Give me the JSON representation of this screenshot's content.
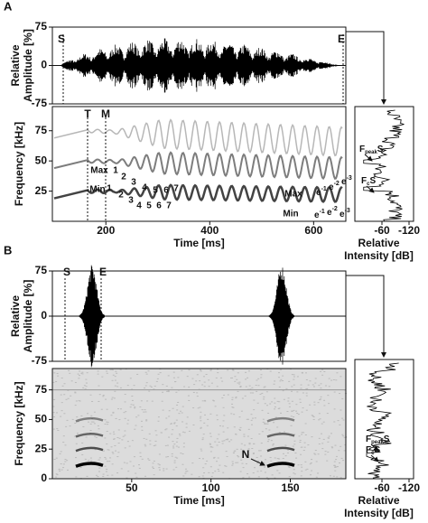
{
  "chart_data": [
    {
      "type": "oscillogram",
      "panel": "A",
      "ylabel": [
        "Relative",
        "Amplitude [%]"
      ],
      "ylim": [
        -75,
        75
      ],
      "yticks": [
        -75,
        0,
        75
      ],
      "annotations": [
        "S",
        "E"
      ]
    },
    {
      "type": "spectrogram",
      "ylabel": "Frequency [kHz]",
      "xlabel": "Time [ms]",
      "xlim": [
        97,
        662
      ],
      "xticks": [
        200,
        400,
        600
      ],
      "ylim": [
        0,
        95
      ],
      "yticks": [
        25,
        50,
        75
      ],
      "annotations": [
        "T",
        "M"
      ],
      "max_labels": [
        "Max",
        "1",
        "2",
        "3",
        "4",
        "5",
        "6",
        "7"
      ],
      "min_labels": [
        "Min",
        "1",
        "2",
        "3",
        "4",
        "5",
        "6",
        "7"
      ],
      "max_e": {
        "label": "Max",
        "base": "e",
        "sups": [
          "-1",
          "-2",
          "-3"
        ]
      },
      "min_e": {
        "label": "Min",
        "base": "e",
        "sups": [
          "-1",
          "-2",
          "-3"
        ]
      }
    },
    {
      "type": "spectrum",
      "xlabel": [
        "Relative",
        "Intensity [dB]"
      ],
      "xlim": [
        0,
        -130
      ],
      "xticks": [
        -60,
        -120
      ],
      "ylim": [
        0,
        95
      ],
      "peak_label": {
        "base": "F",
        "sub": "peak",
        "suffix": "S"
      },
      "c_label": {
        "base": "F",
        "sub": "c",
        "suffix": "S"
      }
    },
    {
      "type": "oscillogram",
      "panel": "B",
      "ylabel": [
        "Relative",
        "Amplitude [%]"
      ],
      "ylim": [
        -75,
        75
      ],
      "yticks": [
        -75,
        0,
        75
      ],
      "annotations": [
        "S",
        "E"
      ]
    },
    {
      "type": "spectrogram",
      "ylabel": "Frequency [kHz]",
      "xlabel": "Time [ms]",
      "xlim": [
        0,
        185
      ],
      "xticks": [
        50,
        100,
        150
      ],
      "ylim": [
        0,
        93
      ],
      "yticks": [
        0,
        25,
        50,
        75
      ],
      "annotations": [
        "N"
      ]
    },
    {
      "type": "spectrum",
      "xlabel": [
        "Relative",
        "Intensity [dB]"
      ],
      "xlim": [
        0,
        -130
      ],
      "xticks": [
        -60,
        -120
      ],
      "ylim": [
        0,
        93
      ],
      "peak_label": {
        "base": "F",
        "sub": "peak",
        "suffix": "S"
      },
      "c_label": {
        "base": "F",
        "sub": "c",
        "suffix": "S"
      }
    }
  ]
}
